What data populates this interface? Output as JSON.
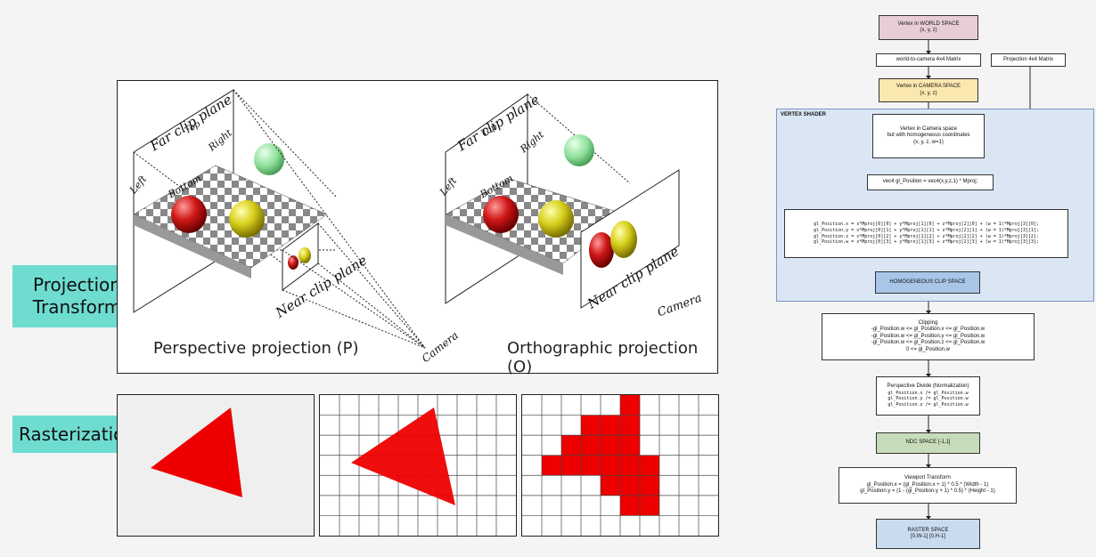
{
  "tags": {
    "projection": "Projection\nTransform",
    "rasterization": "Rasterization"
  },
  "projection_figure": {
    "perspective_caption": "Perspective projection (P)",
    "orthographic_caption": "Orthographic projection (O)",
    "far_clip": "Far clip plane",
    "near_clip": "Near clip plane",
    "top": "Top",
    "right": "Right",
    "left": "Left",
    "bottom": "Bottom",
    "camera": "Camera"
  },
  "colors": {
    "red": "#ee0000",
    "teal": "#6fdcd0",
    "pink": "#e8cdd8",
    "yellow": "#fbe8b0",
    "blue": "#c9dcef",
    "green": "#c7dcba"
  },
  "pipeline": {
    "world_space": "Vertex in WORLD SPACE",
    "world_coords": "(x, y, z)",
    "world_to_camera": "world-to-camera 4x4 Matrix",
    "projection_matrix": "Projection 4x4 Matrix",
    "camera_space": "Vertex in CAMERA SPACE",
    "camera_coords": "(x, y, z)",
    "vertex_shader": "VERTEX SHADER",
    "homog_line1": "Vertex in Camera space",
    "homog_line2": "but with homogeneous coordinates",
    "homog_line3": "(x, y, z, w=1)",
    "gl_position_eq": "vec4 gl_Position = vec4(x,y,z,1) * Mproj;",
    "matrix_lines": [
      "gl_Position.x = x*Mproj[0][0] + y*Mproj[1][0] + z*Mproj[2][0] + (w = 1)*Mproj[3][0];",
      "gl_Position.y = x*Mproj[0][1] + y*Mproj[1][1] + z*Mproj[2][1] + (w = 1)*Mproj[3][1];",
      "gl_Position.z = x*Mproj[0][2] + y*Mproj[1][2] + z*Mproj[2][2] + (w = 1)*Mproj[3][2];",
      "gl_Position.w = x*Mproj[0][3] + y*Mproj[1][3] + z*Mproj[2][3] + (w = 1)*Mproj[3][3];"
    ],
    "homog_clip": "HOMOGENEOUS CLIP SPACE",
    "clipping_title": "Clipping",
    "clipping_lines": [
      "-gl_Position.w <= gl_Position.x <= gl_Position.w",
      "-gl_Position.w <= gl_Position.y <= gl_Position.w",
      "-gl_Position.w <= gl_Position.z <= gl_Position.w",
      "0 <= gl_Position.w"
    ],
    "divide_title": "Perspective Divide (Normalization)",
    "divide_lines": [
      "gl_Position.x /= gl_Position.w",
      "gl_Position.y /= gl_Position.w",
      "gl_Position.z /= gl_Position.w"
    ],
    "ndc": "NDC SPACE [-1,1]",
    "viewport_title": "Viewport Transform",
    "viewport_lines": [
      "gl_Position.x = (gl_Position.x + 1) * 0.5 * (Width - 1)",
      "gl_Position.y = (1 - (gl_Position.y + 1) * 0.5) * (Height - 1)"
    ],
    "raster_space": "RASTER SPACE",
    "raster_coords": "[0,W-1] [0,H-1]"
  }
}
